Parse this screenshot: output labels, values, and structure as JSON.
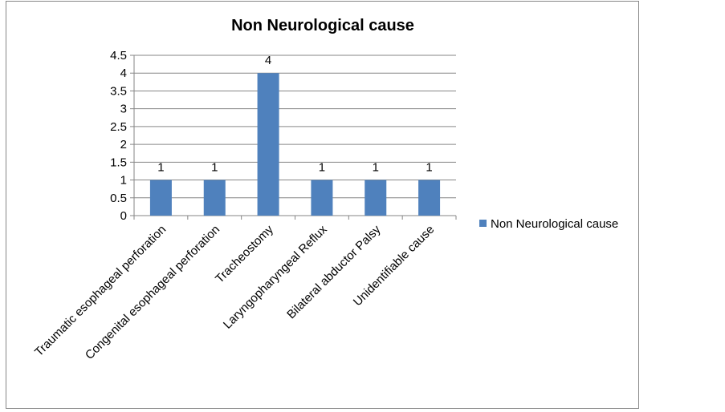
{
  "chart_data": {
    "type": "bar",
    "title": "Non Neurological cause",
    "categories": [
      "Traumatic esophageal perforation",
      "Congenital esophageal perforation",
      "Tracheostomy",
      "Laryngopharyngeal Reflux",
      "Bilateral abductor Palsy",
      "Unidentifiable cause"
    ],
    "series": [
      {
        "name": "Non Neurological cause",
        "values": [
          1,
          1,
          4,
          1,
          1,
          1
        ],
        "color": "#4F81BD"
      }
    ],
    "ylim": [
      0,
      4.5
    ],
    "yticks": [
      "0",
      "0.5",
      "1",
      "1.5",
      "2",
      "2.5",
      "3",
      "3.5",
      "4",
      "4.5"
    ],
    "grid": true,
    "data_labels": true,
    "legend": "right",
    "xlabel": "",
    "ylabel": ""
  }
}
